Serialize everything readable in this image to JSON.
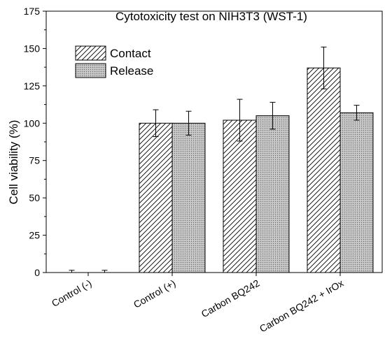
{
  "chart_data": {
    "type": "bar",
    "title": "Cytotoxicity test on NIH3T3 (WST-1)",
    "xlabel": "",
    "ylabel": "Cell viability (%)",
    "ylim": [
      0,
      175
    ],
    "yticks": [
      0,
      25,
      50,
      75,
      100,
      125,
      150,
      175
    ],
    "categories": [
      "Control (-)",
      "Control (+)",
      "Carbon BQ242",
      "Carbon BQ242 + IrOx"
    ],
    "series": [
      {
        "name": "Contact",
        "pattern": "hatch",
        "values": [
          0,
          100,
          102,
          137
        ],
        "errors": [
          1.5,
          9,
          14,
          14
        ]
      },
      {
        "name": "Release",
        "pattern": "dots",
        "values": [
          0,
          100,
          105,
          107
        ],
        "errors": [
          1.5,
          8,
          9,
          5
        ]
      }
    ],
    "legend_position": "top-left",
    "grid": false
  }
}
